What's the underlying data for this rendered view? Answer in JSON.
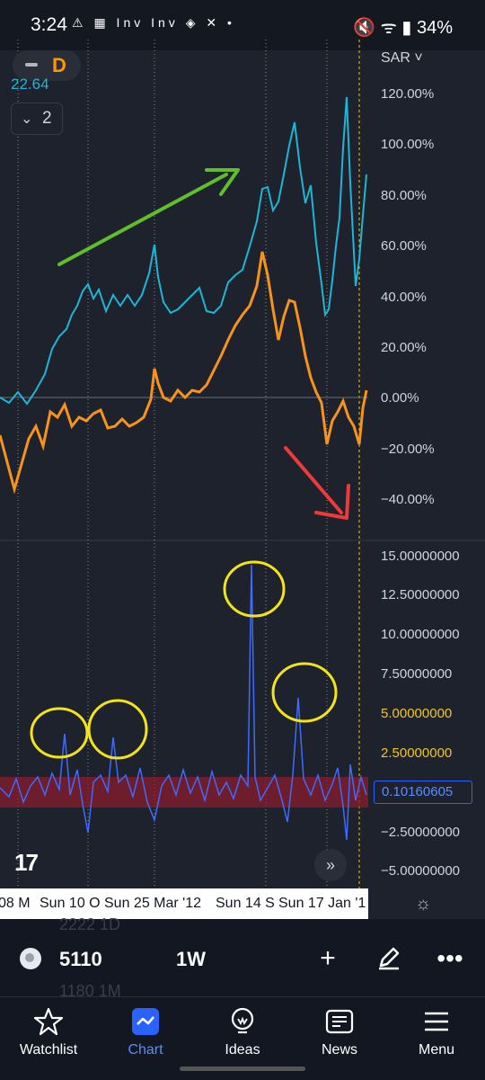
{
  "status_bar": {
    "time": "3:24",
    "app_icons": "⚠ ▦ Inv Inv ◈ ✕ •",
    "right": "🔇 ᯤ ▮ 34%"
  },
  "chart": {
    "interval_letter": "D",
    "legend_value": "22.64",
    "collapse_count": "2",
    "currency": "SAR",
    "price_axis": [
      "120.00%",
      "100.00%",
      "80.00%",
      "60.00%",
      "40.00%",
      "20.00%",
      "0.00%",
      "−20.00%",
      "−40.00%"
    ],
    "osc_axis": [
      "15.00000000",
      "12.50000000",
      "10.00000000",
      "7.50000000",
      "5.00000000",
      "2.50000000",
      "−2.50000000",
      "−5.00000000"
    ],
    "osc_current": "0.10160605",
    "time_labels": [
      "08 M",
      "Sun 10 O",
      "Sun 25 Mar '12",
      "Sun 14 S",
      "Sun 17 Jan '1"
    ],
    "colors": {
      "main_series": "#1fb5d6",
      "compare_series": "#f7931a",
      "oscillator": "#3d6bff",
      "annotation_circle": "#f5e31a",
      "up_arrow": "#5fbf2a",
      "down_arrow": "#f03a3a"
    }
  },
  "toolbar": {
    "symbol": "5110",
    "interval": "1W",
    "ghost_top": "2222   1D",
    "ghost_bottom": "1180   1M"
  },
  "nav": [
    {
      "label": "Watchlist",
      "icon": "star-icon"
    },
    {
      "label": "Chart",
      "icon": "chart-icon"
    },
    {
      "label": "Ideas",
      "icon": "lightbulb-icon"
    },
    {
      "label": "News",
      "icon": "newspaper-icon"
    },
    {
      "label": "Menu",
      "icon": "hamburger-icon"
    }
  ]
}
